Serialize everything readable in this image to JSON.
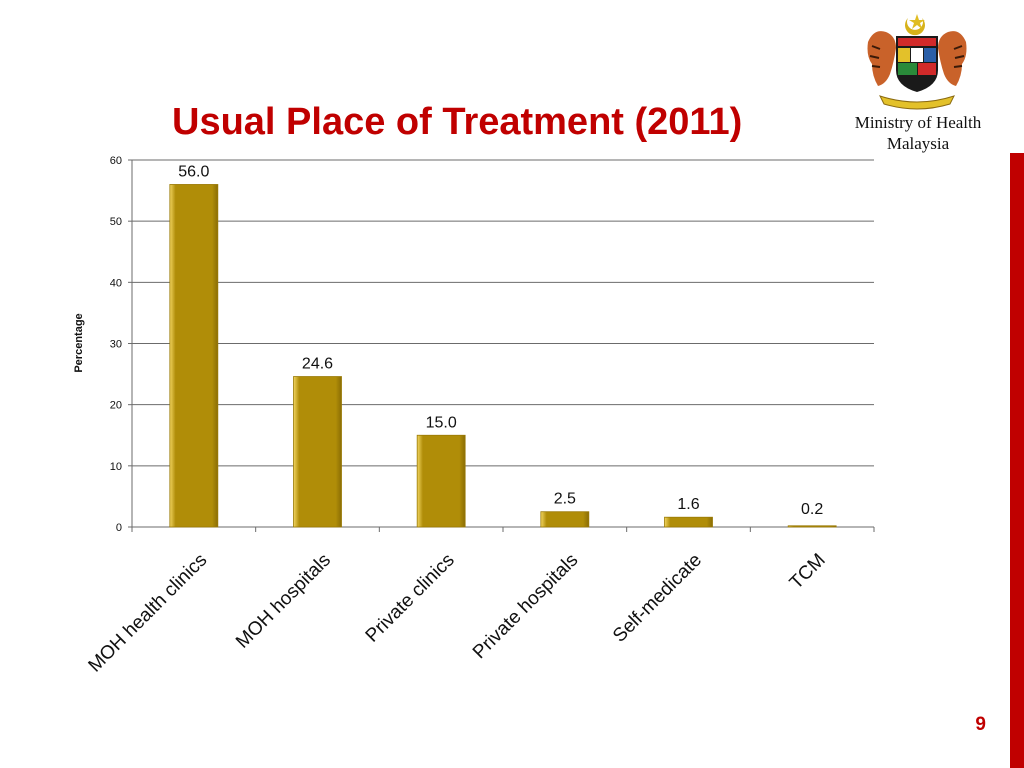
{
  "slide": {
    "title": "Usual Place of Treatment (2011)",
    "organization": [
      "Ministry of Health",
      "Malaysia"
    ],
    "page_number": "9",
    "accent_color": "#c00000"
  },
  "chart_data": {
    "type": "bar",
    "title": "",
    "xlabel": "",
    "ylabel": "Percentage",
    "categories": [
      "MOH health clinics",
      "MOH hospitals",
      "Private clinics",
      "Private hospitals",
      "Self-medicate",
      "TCM"
    ],
    "values": [
      56.0,
      24.6,
      15.0,
      2.5,
      1.6,
      0.2
    ],
    "value_labels": [
      "56.0",
      "24.6",
      "15.0",
      "2.5",
      "1.6",
      "0.2"
    ],
    "ylim": [
      0,
      60
    ],
    "yticks": [
      0,
      10,
      20,
      30,
      40,
      50,
      60
    ],
    "grid": true,
    "bar_color": "#b08d08",
    "bar_edge_color": "#f2d560"
  }
}
